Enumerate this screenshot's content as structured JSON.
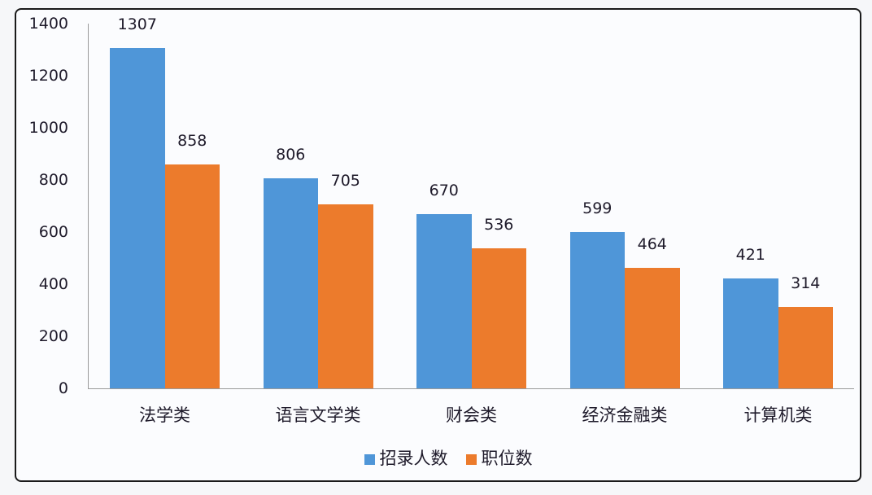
{
  "chart_data": {
    "type": "bar",
    "title": "",
    "xlabel": "",
    "ylabel": "",
    "ylim": [
      0,
      1400
    ],
    "yticks": [
      0,
      200,
      400,
      600,
      800,
      1000,
      1200,
      1400
    ],
    "grid": false,
    "legend_position": "bottom",
    "categories": [
      "法学类",
      "语言文学类",
      "财会类",
      "经济金融类",
      "计算机类"
    ],
    "series": [
      {
        "name": "招录人数",
        "color": "#4f96d8",
        "values": [
          1307,
          806,
          670,
          599,
          421
        ]
      },
      {
        "name": "职位数",
        "color": "#ec7b2c",
        "values": [
          858,
          705,
          536,
          464,
          314
        ]
      }
    ]
  }
}
